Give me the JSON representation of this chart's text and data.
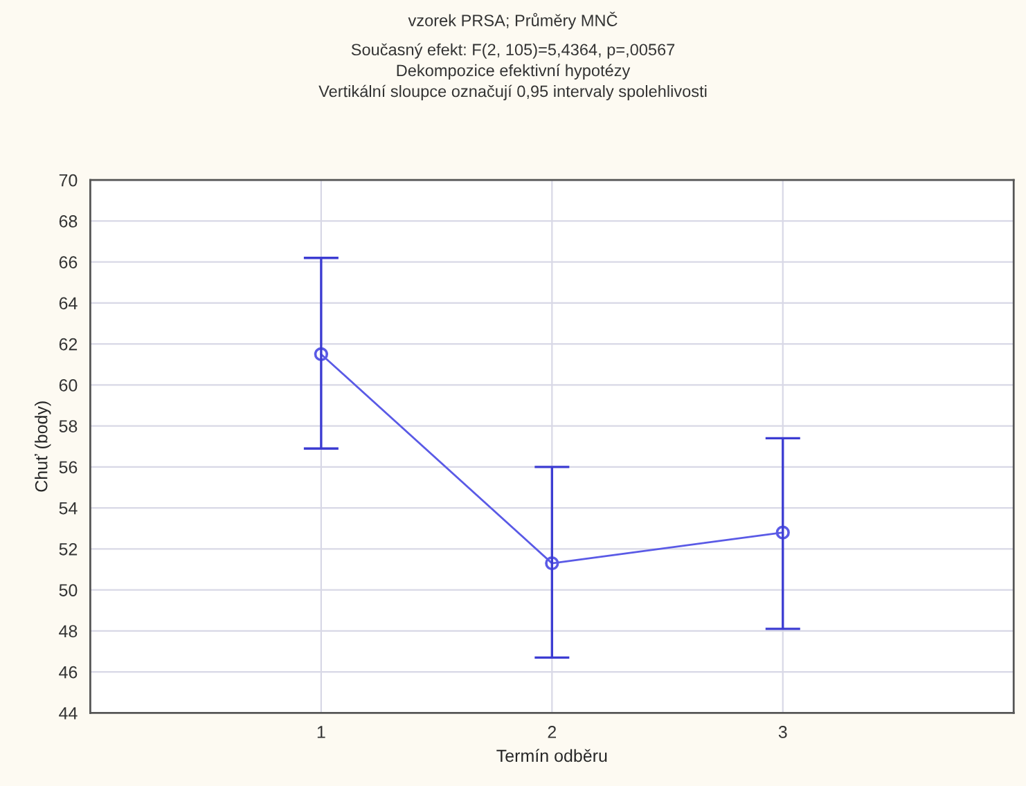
{
  "chart_data": {
    "type": "line",
    "title": "vzorek PRSA; Průměry MNČ",
    "subtitle": "Současný efekt: F(2, 105)=5,4364, p=,00567\nDekompozice efektivní hypotézy\nVertikální sloupce označují 0,95 intervaly spolehlivosti",
    "xlabel": "Termín odběru",
    "ylabel": "Chuť (body)",
    "x": [
      1,
      2,
      3
    ],
    "series": [
      {
        "color": "#5a5ae6",
        "values": [
          61.5,
          51.3,
          52.8
        ],
        "errors": [
          [
            56.9,
            66.2
          ],
          [
            46.7,
            56.0
          ],
          [
            48.1,
            57.4
          ]
        ]
      }
    ],
    "xlim": [
      0,
      4
    ],
    "xticks": [
      1,
      2,
      3
    ],
    "ylim": [
      44,
      70
    ],
    "yticks": [
      44,
      46,
      48,
      50,
      52,
      54,
      56,
      58,
      60,
      62,
      64,
      66,
      68,
      70
    ],
    "grid": true,
    "marker": "circle",
    "line_style": "solid"
  }
}
